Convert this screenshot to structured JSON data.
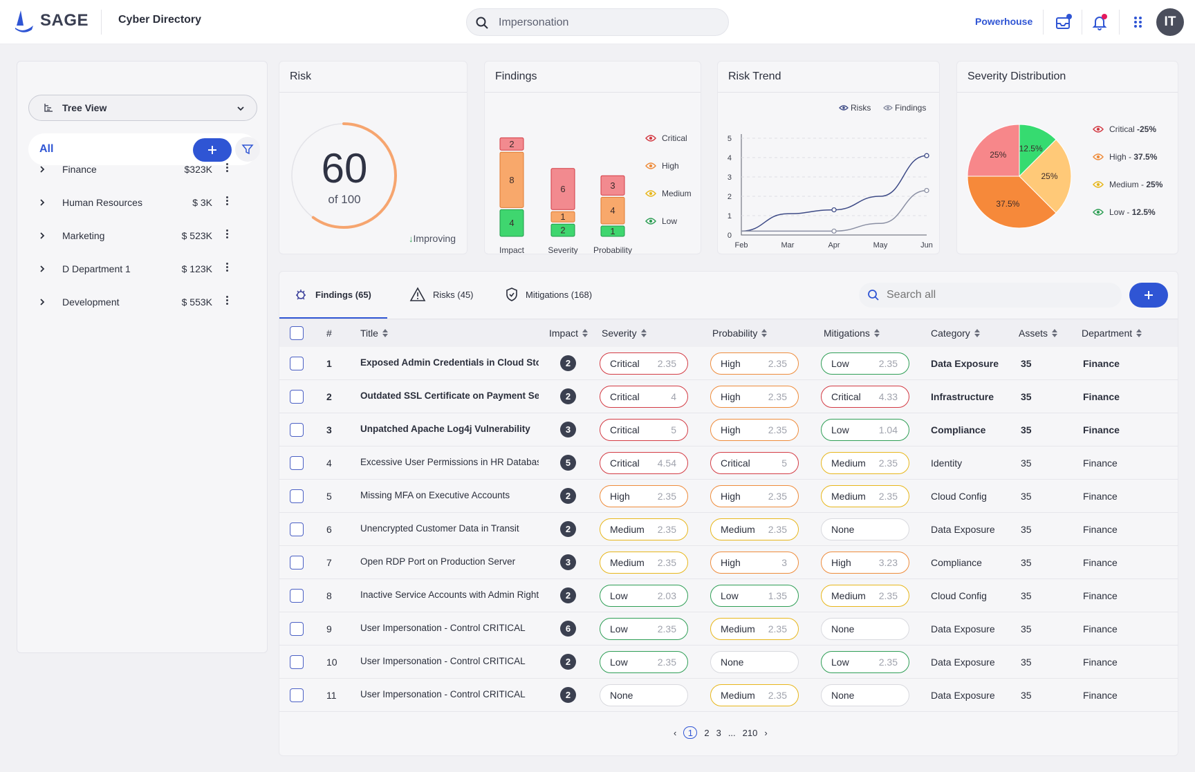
{
  "header": {
    "brand": "SAGE",
    "app_title": "Cyber Directory",
    "search_value": "Impersonation",
    "workspace": "Powerhouse",
    "avatar_initials": "IT",
    "accent": "#2f55d4"
  },
  "sidebar": {
    "view_label": "Tree View",
    "all_label": "All",
    "departments": [
      {
        "name": "Finance",
        "value": "$323K"
      },
      {
        "name": "Human Resources",
        "value": "$ 3K"
      },
      {
        "name": "Marketing",
        "value": "$ 523K"
      },
      {
        "name": "D Department 1",
        "value": "$ 123K"
      },
      {
        "name": "Development",
        "value": "$ 553K"
      }
    ]
  },
  "risk": {
    "title": "Risk",
    "score": "60",
    "of_label": "of 100",
    "trend": "Improving",
    "score_value": 60,
    "max": 100
  },
  "findings": {
    "title": "Findings",
    "legend": [
      {
        "label": "Critical",
        "color": "#d33a43"
      },
      {
        "label": "High",
        "color": "#ee8b3a"
      },
      {
        "label": "Medium",
        "color": "#e7b61a"
      },
      {
        "label": "Low",
        "color": "#2e9e55"
      }
    ]
  },
  "risk_trend": {
    "title": "Risk Trend",
    "legend": [
      "Risks",
      "Findings"
    ]
  },
  "severity_distribution": {
    "title": "Severity Distribution",
    "legend": [
      {
        "name": "Critical ",
        "pct": "-25%",
        "color": "#d33a43"
      },
      {
        "name": "High - ",
        "pct": "37.5%",
        "color": "#ee8b3a"
      },
      {
        "name": "Medium - ",
        "pct": "25%",
        "color": "#e7b61a"
      },
      {
        "name": "Low - ",
        "pct": "12.5%",
        "color": "#2e9e55"
      }
    ]
  },
  "chart_data": [
    {
      "type": "bar",
      "title": "Findings",
      "categories": [
        "Impact",
        "Severity",
        "Probability"
      ],
      "series": [
        {
          "name": "Low",
          "values": [
            4,
            2,
            1
          ],
          "color": "#3fd66f"
        },
        {
          "name": "Medium",
          "values": [
            8,
            1,
            4
          ],
          "color": "#f8a86b"
        },
        {
          "name": "High",
          "values": [
            2,
            6,
            3
          ],
          "color": "#f28a8f"
        }
      ],
      "stacked": true
    },
    {
      "type": "line",
      "title": "Risk Trend",
      "x": [
        "Feb",
        "Mar",
        "Apr",
        "May",
        "Jun"
      ],
      "yticks": [
        0,
        1,
        2,
        3,
        4,
        5
      ],
      "ylim": [
        0,
        5
      ],
      "series": [
        {
          "name": "Risks",
          "values": [
            0.2,
            1.1,
            1.3,
            2.0,
            4.1
          ],
          "color": "#3d4a86"
        },
        {
          "name": "Findings",
          "values": [
            0.2,
            0.2,
            0.2,
            0.6,
            2.3
          ],
          "color": "#8a8fa3"
        }
      ],
      "legend": "top-right"
    },
    {
      "type": "pie",
      "title": "Severity Distribution",
      "slices": [
        {
          "label": "12.5%",
          "value": 12.5,
          "color": "#36db70"
        },
        {
          "label": "25%",
          "value": 25,
          "color": "#ffc978"
        },
        {
          "label": "37.5%",
          "value": 37.5,
          "color": "#f6893a"
        },
        {
          "label": "25%",
          "value": 25,
          "color": "#f7878a"
        }
      ]
    }
  ],
  "table": {
    "tabs": [
      {
        "label": "Findings (65)",
        "icon": "bug-icon"
      },
      {
        "label": "Risks (45)",
        "icon": "warning-icon"
      },
      {
        "label": "Mitigations (168)",
        "icon": "shield-icon"
      }
    ],
    "search_placeholder": "Search all",
    "columns": [
      "#",
      "Title",
      "Impact",
      "Severity",
      "Probability",
      "Mitigations",
      "Category",
      "Assets",
      "Department"
    ],
    "rows": [
      {
        "n": "1",
        "title": "Exposed Admin Credentials in Cloud Storage",
        "bold": true,
        "impact": "2",
        "sev": [
          "Critical",
          "2.35",
          "critical"
        ],
        "prob": [
          "High",
          "2.35",
          "high"
        ],
        "mit": [
          "Low",
          "2.35",
          "low"
        ],
        "cat": "Data Exposure",
        "assets": "35",
        "dept": "Finance"
      },
      {
        "n": "2",
        "title": "Outdated SSL Certificate on Payment Server",
        "bold": true,
        "impact": "2",
        "sev": [
          "Critical",
          "4",
          "critical"
        ],
        "prob": [
          "High",
          "2.35",
          "high"
        ],
        "mit": [
          "Critical",
          "4.33",
          "critical"
        ],
        "cat": "Infrastructure",
        "assets": "35",
        "dept": "Finance"
      },
      {
        "n": "3",
        "title": "Unpatched Apache Log4j Vulnerability",
        "bold": true,
        "impact": "3",
        "sev": [
          "Critical",
          "5",
          "critical"
        ],
        "prob": [
          "High",
          "2.35",
          "high"
        ],
        "mit": [
          "Low",
          "1.04",
          "low"
        ],
        "cat": "Compliance",
        "assets": "35",
        "dept": "Finance"
      },
      {
        "n": "4",
        "title": "Excessive User Permissions in HR Database",
        "bold": false,
        "impact": "5",
        "sev": [
          "Critical",
          "4.54",
          "critical"
        ],
        "prob": [
          "Critical",
          "5",
          "critical"
        ],
        "mit": [
          "Medium",
          "2.35",
          "medium"
        ],
        "cat": "Identity",
        "assets": "35",
        "dept": "Finance"
      },
      {
        "n": "5",
        "title": "Missing MFA on Executive Accounts",
        "bold": false,
        "impact": "2",
        "sev": [
          "High",
          "2.35",
          "high"
        ],
        "prob": [
          "High",
          "2.35",
          "high"
        ],
        "mit": [
          "Medium",
          "2.35",
          "medium"
        ],
        "cat": "Cloud Config",
        "assets": "35",
        "dept": "Finance"
      },
      {
        "n": "6",
        "title": "Unencrypted Customer Data in Transit",
        "bold": false,
        "impact": "2",
        "sev": [
          "Medium",
          "2.35",
          "medium"
        ],
        "prob": [
          "Medium",
          "2.35",
          "medium"
        ],
        "mit": [
          "None",
          "",
          "none"
        ],
        "cat": "Data Exposure",
        "assets": "35",
        "dept": "Finance"
      },
      {
        "n": "7",
        "title": "Open RDP Port on Production Server",
        "bold": false,
        "impact": "3",
        "sev": [
          "Medium",
          "2.35",
          "medium"
        ],
        "prob": [
          "High",
          "3",
          "high"
        ],
        "mit": [
          "High",
          "3.23",
          "high"
        ],
        "cat": "Compliance",
        "assets": "35",
        "dept": "Finance"
      },
      {
        "n": "8",
        "title": "Inactive Service Accounts with Admin Rights",
        "bold": false,
        "impact": "2",
        "sev": [
          "Low",
          "2.03",
          "low"
        ],
        "prob": [
          "Low",
          "1.35",
          "low"
        ],
        "mit": [
          "Medium",
          "2.35",
          "medium"
        ],
        "cat": "Cloud Config",
        "assets": "35",
        "dept": "Finance"
      },
      {
        "n": "9",
        "title": "User Impersonation - Control CRITICAL",
        "bold": false,
        "impact": "6",
        "sev": [
          "Low",
          "2.35",
          "low"
        ],
        "prob": [
          "Medium",
          "2.35",
          "medium"
        ],
        "mit": [
          "None",
          "",
          "none"
        ],
        "cat": "Data Exposure",
        "assets": "35",
        "dept": "Finance"
      },
      {
        "n": "10",
        "title": "User Impersonation - Control CRITICAL",
        "bold": false,
        "impact": "2",
        "sev": [
          "Low",
          "2.35",
          "low"
        ],
        "prob": [
          "None",
          "",
          "none"
        ],
        "mit": [
          "Low",
          "2.35",
          "low"
        ],
        "cat": "Data Exposure",
        "assets": "35",
        "dept": "Finance"
      },
      {
        "n": "11",
        "title": "User Impersonation - Control CRITICAL",
        "bold": false,
        "impact": "2",
        "sev": [
          "None",
          "",
          "none"
        ],
        "prob": [
          "Medium",
          "2.35",
          "medium"
        ],
        "mit": [
          "None",
          "",
          "none"
        ],
        "cat": "Data Exposure",
        "assets": "35",
        "dept": "Finance"
      }
    ],
    "pager": {
      "pages": [
        "1",
        "2",
        "3",
        "...",
        "210"
      ],
      "current": "1"
    }
  }
}
